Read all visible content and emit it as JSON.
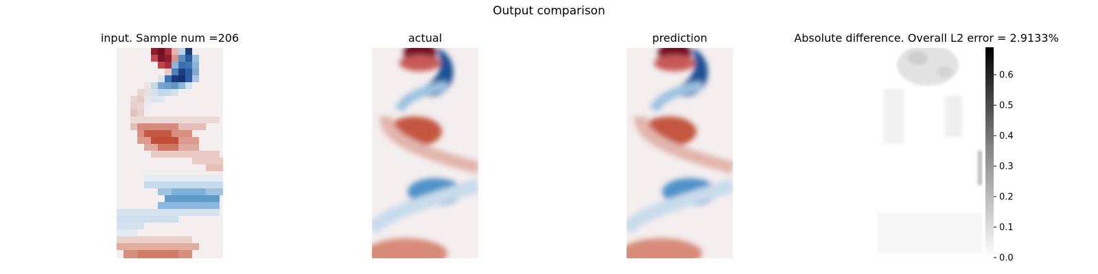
{
  "figure": {
    "suptitle": "Output comparison"
  },
  "chart_data": [
    {
      "type": "heatmap",
      "title": "input. Sample num =206",
      "field": "vorticity-coarse"
    },
    {
      "type": "heatmap",
      "title": "actual",
      "field": "vorticity"
    },
    {
      "type": "heatmap",
      "title": "prediction",
      "field": "vorticity"
    },
    {
      "type": "heatmap",
      "title": "Absolute difference. Overall L2 error = 2.9133%",
      "field": "absolute-difference",
      "colormap": "Greys",
      "colorbar": {
        "ticks": [
          "0.0",
          "0.1",
          "0.2",
          "0.3",
          "0.4",
          "0.5",
          "0.6"
        ],
        "min": 0.0,
        "max": 0.69
      }
    }
  ],
  "colors": {
    "positive": "#b2182b",
    "negative": "#2166ac",
    "neutral": "#f4eeee"
  }
}
